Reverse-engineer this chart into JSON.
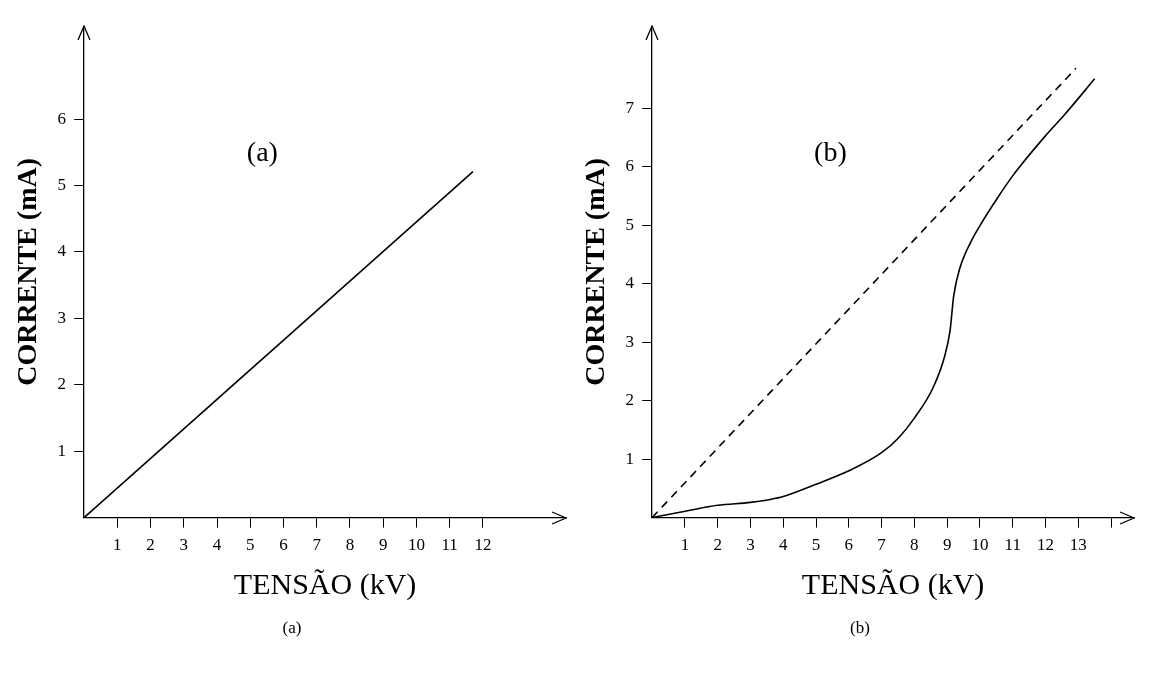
{
  "chart_data": [
    {
      "type": "line",
      "title": "(a)",
      "xlabel": "TENSÃO (kV)",
      "ylabel": "CORRENTE (mA)",
      "annotations": [
        "(a)"
      ],
      "xlim": [
        0,
        14.5
      ],
      "ylim": [
        0,
        7.4
      ],
      "xticks": [
        1,
        2,
        3,
        4,
        5,
        6,
        7,
        8,
        9,
        10,
        11,
        12
      ],
      "yticks": [
        1,
        2,
        3,
        4,
        5,
        6
      ],
      "legend": false,
      "marker": "none",
      "series": [
        {
          "color": "#000000",
          "line_style": "solid",
          "x": [
            0,
            11.7
          ],
          "values": [
            0,
            5.21
          ]
        }
      ]
    },
    {
      "type": "line",
      "title": "(b)",
      "xlabel": "TENSÃO (kV)",
      "ylabel": "CORRENTE (mA)",
      "annotations": [
        "(b)"
      ],
      "xlim": [
        0,
        14.7
      ],
      "ylim": [
        0,
        8.4
      ],
      "xticks": [
        1,
        2,
        3,
        4,
        5,
        6,
        7,
        8,
        9,
        10,
        11,
        12,
        13,
        {
          "value": 14,
          "label": null
        }
      ],
      "yticks": [
        1,
        2,
        3,
        4,
        5,
        6,
        7
      ],
      "legend": false,
      "marker": "none",
      "series": [
        {
          "color": "#000000",
          "line_style": "dashed",
          "x": [
            0,
            12.93
          ],
          "values": [
            0,
            7.68
          ]
        },
        {
          "color": "#000000",
          "line_style": "solid",
          "x": [
            0,
            1.01,
            2.0,
            3.0,
            3.6,
            4.0,
            5.0,
            6.0,
            7.0,
            7.53,
            8.0,
            8.57,
            8.92,
            9.09,
            9.2,
            9.38,
            9.72,
            10.01,
            10.53,
            11.01,
            12.02,
            12.6,
            13.5
          ],
          "values": [
            0,
            0.11,
            0.21,
            0.26,
            0.31,
            0.36,
            0.57,
            0.8,
            1.11,
            1.37,
            1.7,
            2.22,
            2.75,
            3.2,
            3.79,
            4.25,
            4.71,
            5.0,
            5.46,
            5.85,
            6.54,
            6.9,
            7.5
          ]
        }
      ]
    }
  ]
}
